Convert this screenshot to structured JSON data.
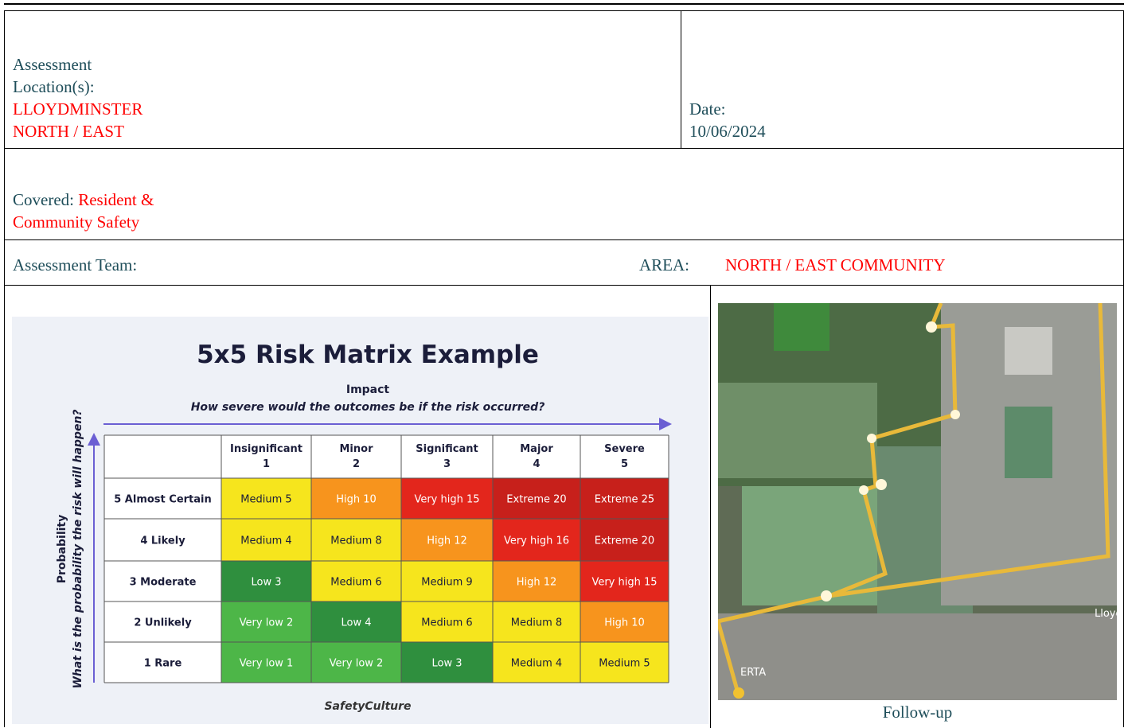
{
  "header": {
    "location_label": [
      "Assessment",
      "Location(s):"
    ],
    "location_value": [
      "LLOYDMINSTER",
      "NORTH / EAST"
    ],
    "date_label": "Date:",
    "date_value": "10/06/2024",
    "covered_label": "Covered:",
    "covered_value": [
      "Resident &",
      "Community Safety"
    ],
    "team_label": "Assessment Team:",
    "area_label": "AREA:",
    "area_value": "NORTH / EAST COMMUNITY"
  },
  "matrix": {
    "title": "5x5 Risk Matrix Example",
    "x_label": "Impact",
    "x_question": "How severe would the outcomes be if the risk occurred?",
    "y_label": "Probability",
    "y_question": "What is the probability the risk will happen?",
    "columns": [
      {
        "name": "Insignificant",
        "number": "1"
      },
      {
        "name": "Minor",
        "number": "2"
      },
      {
        "name": "Significant",
        "number": "3"
      },
      {
        "name": "Major",
        "number": "4"
      },
      {
        "name": "Severe",
        "number": "5"
      }
    ],
    "rows": [
      {
        "name": "5 Almost Certain",
        "cells": [
          {
            "label": "Medium 5",
            "color": "#f6e51d"
          },
          {
            "label": "High 10",
            "color": "#f7941d"
          },
          {
            "label": "Very high 15",
            "color": "#e3261c"
          },
          {
            "label": "Extreme 20",
            "color": "#c7201b"
          },
          {
            "label": "Extreme 25",
            "color": "#c7201b"
          }
        ]
      },
      {
        "name": "4 Likely",
        "cells": [
          {
            "label": "Medium 4",
            "color": "#f6e51d"
          },
          {
            "label": "Medium 8",
            "color": "#f6e51d"
          },
          {
            "label": "High 12",
            "color": "#f7941d"
          },
          {
            "label": "Very high 16",
            "color": "#e3261c"
          },
          {
            "label": "Extreme 20",
            "color": "#c7201b"
          }
        ]
      },
      {
        "name": "3 Moderate",
        "cells": [
          {
            "label": "Low 3",
            "color": "#2f8f3e"
          },
          {
            "label": "Medium 6",
            "color": "#f6e51d"
          },
          {
            "label": "Medium 9",
            "color": "#f6e51d"
          },
          {
            "label": "High 12",
            "color": "#f7941d"
          },
          {
            "label": "Very high 15",
            "color": "#e3261c"
          }
        ]
      },
      {
        "name": "2 Unlikely",
        "cells": [
          {
            "label": "Very low 2",
            "color": "#4db648"
          },
          {
            "label": "Low 4",
            "color": "#2f8f3e"
          },
          {
            "label": "Medium 6",
            "color": "#f6e51d"
          },
          {
            "label": "Medium 8",
            "color": "#f6e51d"
          },
          {
            "label": "High 10",
            "color": "#f7941d"
          }
        ]
      },
      {
        "name": "1 Rare",
        "cells": [
          {
            "label": "Very low 1",
            "color": "#4db648"
          },
          {
            "label": "Very low 2",
            "color": "#4db648"
          },
          {
            "label": "Low 3",
            "color": "#2f8f3e"
          },
          {
            "label": "Medium 4",
            "color": "#f6e51d"
          },
          {
            "label": "Medium 5",
            "color": "#f6e51d"
          }
        ]
      }
    ],
    "logo": "SafetyCulture"
  },
  "map": {
    "labels": [
      "Lloydm",
      "ERTA"
    ],
    "caption": "Follow-up"
  }
}
